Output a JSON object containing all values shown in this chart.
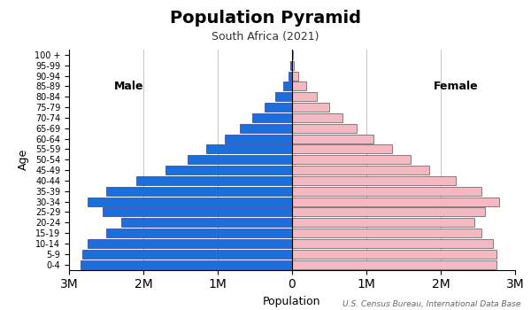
{
  "title": "Population Pyramid",
  "subtitle": "South Africa (2021)",
  "xlabel": "Population",
  "ylabel": "Age",
  "footnote": "U.S. Census Bureau, International Data Base",
  "age_groups": [
    "0-4",
    "5-9",
    "10-14",
    "15-19",
    "20-24",
    "25-29",
    "30-34",
    "35-39",
    "40-44",
    "45-49",
    "50-54",
    "55-59",
    "60-64",
    "65-69",
    "70-74",
    "75-79",
    "80-84",
    "85-89",
    "90-94",
    "95-99",
    "100 +"
  ],
  "male": [
    2850000,
    2820000,
    2750000,
    2500000,
    2300000,
    2550000,
    2750000,
    2500000,
    2100000,
    1700000,
    1400000,
    1150000,
    900000,
    700000,
    530000,
    370000,
    230000,
    120000,
    50000,
    18000,
    5000
  ],
  "female": [
    2750000,
    2750000,
    2700000,
    2550000,
    2450000,
    2600000,
    2780000,
    2550000,
    2200000,
    1850000,
    1600000,
    1350000,
    1100000,
    870000,
    680000,
    500000,
    330000,
    190000,
    80000,
    28000,
    8000
  ],
  "male_color": "#1a6fdb",
  "female_color": "#f4b8c1",
  "male_edge": "#1a1a8c",
  "female_edge": "#333333",
  "xlim": 3000000,
  "background_color": "#ffffff",
  "grid_color": "#bbbbbb",
  "title_fontsize": 14,
  "subtitle_fontsize": 9,
  "label_fontsize": 9,
  "tick_fontsize": 7,
  "footnote_fontsize": 6.5
}
